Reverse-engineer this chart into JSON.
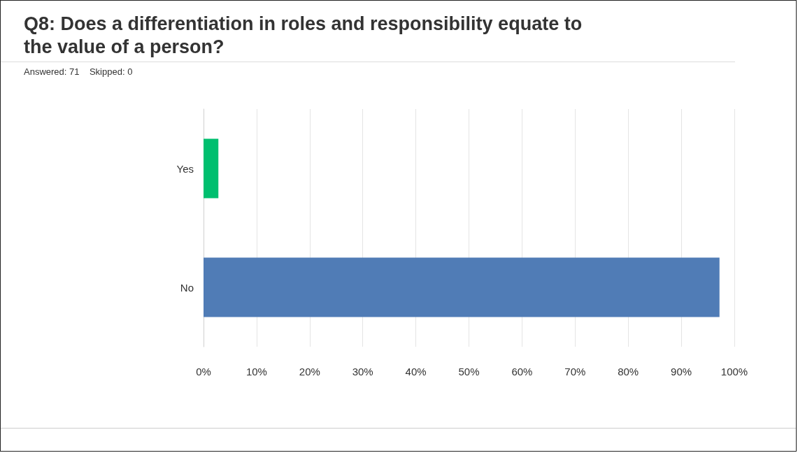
{
  "chart_data": {
    "type": "bar",
    "orientation": "horizontal",
    "title": "Q8: Does a differentiation in roles and responsibility equate to the value of a person?",
    "subtitle": "Answered: 71    Skipped: 0",
    "categories": [
      "Yes",
      "No"
    ],
    "values": [
      2.8,
      97.2
    ],
    "colors": [
      "#00bf6f",
      "#507cb6"
    ],
    "xlim": [
      0,
      100
    ],
    "xticks": [
      {
        "value": 0,
        "label": "0%"
      },
      {
        "value": 10,
        "label": "10%"
      },
      {
        "value": 20,
        "label": "20%"
      },
      {
        "value": 30,
        "label": "30%"
      },
      {
        "value": 40,
        "label": "40%"
      },
      {
        "value": 50,
        "label": "50%"
      },
      {
        "value": 60,
        "label": "60%"
      },
      {
        "value": 70,
        "label": "70%"
      },
      {
        "value": 80,
        "label": "80%"
      },
      {
        "value": 90,
        "label": "90%"
      },
      {
        "value": 100,
        "label": "100%"
      }
    ],
    "grid": "x"
  }
}
